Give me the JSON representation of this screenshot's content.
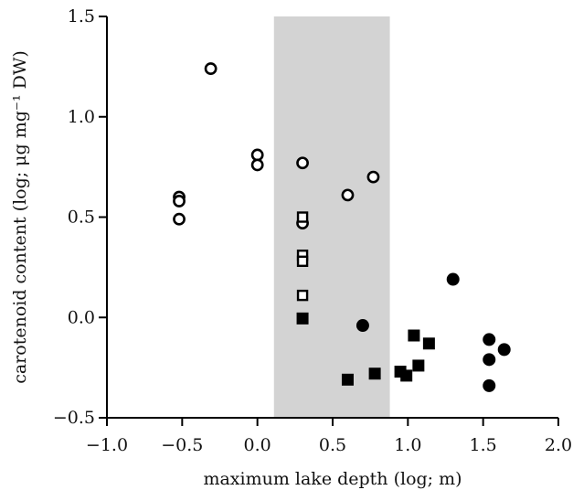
{
  "chart_data": {
    "type": "scatter",
    "xlabel": "maximum lake depth (log; m)",
    "ylabel": "carotenoid content (log; μg mg⁻¹ DW)",
    "xlim": [
      -1.0,
      2.0
    ],
    "ylim": [
      -0.5,
      1.5
    ],
    "x_ticks": [
      -1.0,
      -0.5,
      0.0,
      0.5,
      1.0,
      1.5,
      2.0
    ],
    "x_tick_labels": [
      "−1.0",
      "−0.5",
      "0.0",
      "0.5",
      "1.0",
      "1.5",
      "2.0"
    ],
    "y_ticks": [
      -0.5,
      0.0,
      0.5,
      1.0,
      1.5
    ],
    "y_tick_labels": [
      "−0.5",
      "0.0",
      "0.5",
      "1.0",
      "1.5"
    ],
    "grid": false,
    "shaded_region": {
      "x_start": 0.11,
      "x_end": 0.88,
      "color": "#d3d3d3"
    },
    "series": [
      {
        "marker": "open-circle",
        "color": "#000000",
        "points": [
          {
            "x": -0.52,
            "y": 0.6
          },
          {
            "x": -0.52,
            "y": 0.58
          },
          {
            "x": -0.52,
            "y": 0.49
          },
          {
            "x": -0.31,
            "y": 1.24
          },
          {
            "x": 0.0,
            "y": 0.81
          },
          {
            "x": 0.0,
            "y": 0.76
          },
          {
            "x": 0.3,
            "y": 0.77
          },
          {
            "x": 0.3,
            "y": 0.47
          },
          {
            "x": 0.6,
            "y": 0.61
          },
          {
            "x": 0.77,
            "y": 0.7
          }
        ]
      },
      {
        "marker": "open-square",
        "color": "#000000",
        "points": [
          {
            "x": 0.3,
            "y": 0.5
          },
          {
            "x": 0.3,
            "y": 0.31
          },
          {
            "x": 0.3,
            "y": 0.28
          },
          {
            "x": 0.3,
            "y": 0.11
          }
        ]
      },
      {
        "marker": "filled-square",
        "color": "#000000",
        "points": [
          {
            "x": 0.3,
            "y": -0.005
          },
          {
            "x": 0.6,
            "y": -0.31
          },
          {
            "x": 0.78,
            "y": -0.28
          },
          {
            "x": 0.95,
            "y": -0.27
          },
          {
            "x": 0.99,
            "y": -0.29
          },
          {
            "x": 1.04,
            "y": -0.09
          },
          {
            "x": 1.07,
            "y": -0.24
          },
          {
            "x": 1.14,
            "y": -0.13
          }
        ]
      },
      {
        "marker": "filled-circle",
        "color": "#000000",
        "points": [
          {
            "x": 0.7,
            "y": -0.04
          },
          {
            "x": 1.3,
            "y": 0.19
          },
          {
            "x": 1.54,
            "y": -0.11
          },
          {
            "x": 1.54,
            "y": -0.21
          },
          {
            "x": 1.54,
            "y": -0.34
          },
          {
            "x": 1.64,
            "y": -0.16
          }
        ]
      }
    ]
  }
}
